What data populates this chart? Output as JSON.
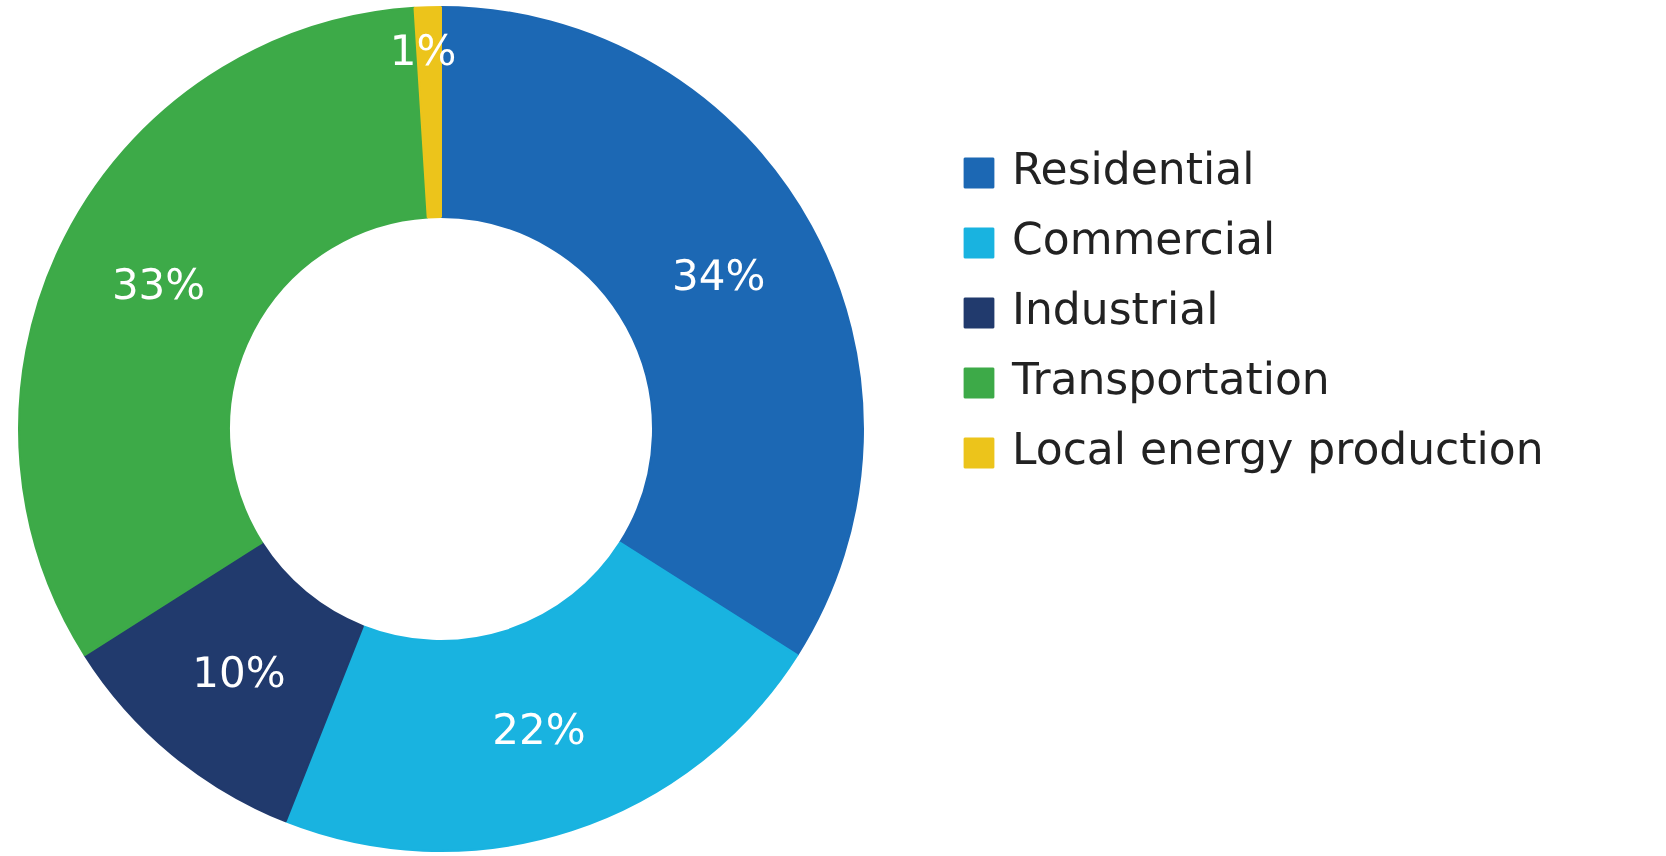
{
  "chart_data": {
    "type": "donut",
    "categories": [
      "Residential",
      "Commercial",
      "Industrial",
      "Transportation",
      "Local energy production"
    ],
    "values": [
      34,
      22,
      10,
      33,
      1
    ],
    "colors": [
      "#1c68b4",
      "#19b3e0",
      "#213a6d",
      "#3daa48",
      "#ecc41b"
    ],
    "value_labels": [
      "34%",
      "22%",
      "10%",
      "33%",
      "1%"
    ],
    "legend": "right"
  }
}
